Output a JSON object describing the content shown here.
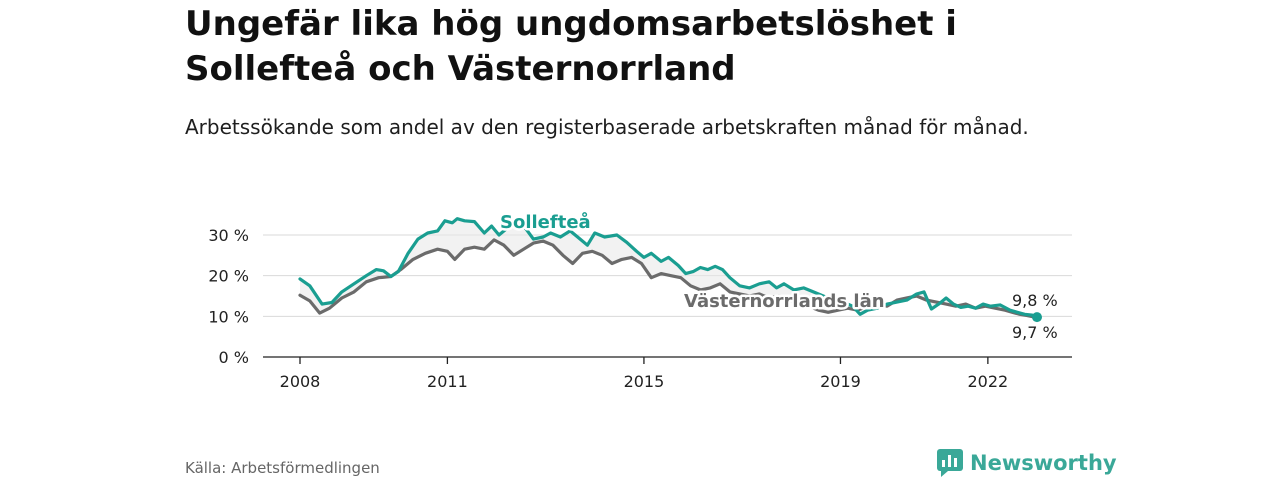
{
  "title": "Ungefär lika hög ungdomsarbetslöshet i Sollefteå och Västernorrland",
  "subtitle": "Arbetssökande som andel av den registerbaserade arbetskraften månad för månad.",
  "source": "Källa: Arbetsförmedlingen",
  "brand": "Newsworthy",
  "colors": {
    "solleftea": "#1a9e91",
    "vasternorrland": "#6b6b6b",
    "band": "#e8e8e8",
    "grid": "#d9d9d9"
  },
  "chart_data": {
    "type": "line",
    "title": "",
    "xlabel": "",
    "ylabel": "",
    "ylim": [
      0,
      30
    ],
    "yticks": [
      {
        "value": 0,
        "label": "0 %"
      },
      {
        "value": 10,
        "label": "10 %"
      },
      {
        "value": 20,
        "label": "20 %"
      },
      {
        "value": 30,
        "label": "30 %"
      }
    ],
    "xlim": [
      2008.0,
      2023.5
    ],
    "xticks": [
      {
        "value": 2008,
        "label": "2008"
      },
      {
        "value": 2011,
        "label": "2011"
      },
      {
        "value": 2015,
        "label": "2015"
      },
      {
        "value": 2019,
        "label": "2019"
      },
      {
        "value": 2022,
        "label": "2022"
      }
    ],
    "grid": true,
    "series": [
      {
        "name": "Sollefteå",
        "color": "#1a9e91",
        "end_label": "9,8 %",
        "points": [
          [
            2008.0,
            19.2
          ],
          [
            2008.2,
            17.5
          ],
          [
            2008.45,
            13.0
          ],
          [
            2008.65,
            13.4
          ],
          [
            2008.85,
            16.0
          ],
          [
            2009.1,
            18.0
          ],
          [
            2009.35,
            20.0
          ],
          [
            2009.55,
            21.5
          ],
          [
            2009.7,
            21.2
          ],
          [
            2009.85,
            19.8
          ],
          [
            2010.0,
            21.0
          ],
          [
            2010.2,
            25.5
          ],
          [
            2010.4,
            29.0
          ],
          [
            2010.6,
            30.5
          ],
          [
            2010.8,
            31.0
          ],
          [
            2010.95,
            33.5
          ],
          [
            2011.1,
            33.0
          ],
          [
            2011.2,
            34.0
          ],
          [
            2011.35,
            33.5
          ],
          [
            2011.55,
            33.3
          ],
          [
            2011.75,
            30.5
          ],
          [
            2011.9,
            32.2
          ],
          [
            2012.05,
            30.0
          ],
          [
            2012.25,
            32.0
          ],
          [
            2012.45,
            32.8
          ],
          [
            2012.6,
            31.5
          ],
          [
            2012.75,
            29.0
          ],
          [
            2012.95,
            29.5
          ],
          [
            2013.1,
            30.5
          ],
          [
            2013.3,
            29.5
          ],
          [
            2013.5,
            31.0
          ],
          [
            2013.65,
            29.5
          ],
          [
            2013.85,
            27.5
          ],
          [
            2014.0,
            30.5
          ],
          [
            2014.2,
            29.5
          ],
          [
            2014.45,
            30.0
          ],
          [
            2014.65,
            28.2
          ],
          [
            2014.85,
            26.0
          ],
          [
            2015.0,
            24.5
          ],
          [
            2015.15,
            25.5
          ],
          [
            2015.35,
            23.5
          ],
          [
            2015.5,
            24.5
          ],
          [
            2015.7,
            22.5
          ],
          [
            2015.85,
            20.5
          ],
          [
            2016.0,
            21.0
          ],
          [
            2016.15,
            22.0
          ],
          [
            2016.3,
            21.5
          ],
          [
            2016.45,
            22.3
          ],
          [
            2016.6,
            21.5
          ],
          [
            2016.75,
            19.5
          ],
          [
            2016.95,
            17.5
          ],
          [
            2017.15,
            17.0
          ],
          [
            2017.35,
            18.0
          ],
          [
            2017.55,
            18.5
          ],
          [
            2017.7,
            17.0
          ],
          [
            2017.85,
            18.0
          ],
          [
            2018.05,
            16.5
          ],
          [
            2018.25,
            17.0
          ],
          [
            2018.45,
            16.0
          ],
          [
            2018.65,
            15.0
          ],
          [
            2018.85,
            14.0
          ],
          [
            2019.05,
            13.5
          ],
          [
            2019.25,
            12.5
          ],
          [
            2019.4,
            10.5
          ],
          [
            2019.55,
            11.5
          ],
          [
            2019.75,
            12.0
          ],
          [
            2019.95,
            13.0
          ],
          [
            2020.15,
            13.5
          ],
          [
            2020.35,
            14.0
          ],
          [
            2020.55,
            15.5
          ],
          [
            2020.7,
            16.0
          ],
          [
            2020.85,
            11.8
          ],
          [
            2021.0,
            13.0
          ],
          [
            2021.15,
            14.5
          ],
          [
            2021.3,
            13.0
          ],
          [
            2021.45,
            12.2
          ],
          [
            2021.6,
            12.5
          ],
          [
            2021.75,
            12.0
          ],
          [
            2021.9,
            13.0
          ],
          [
            2022.05,
            12.5
          ],
          [
            2022.25,
            12.8
          ],
          [
            2022.45,
            11.5
          ],
          [
            2022.6,
            11.0
          ],
          [
            2022.75,
            10.5
          ],
          [
            2022.9,
            10.3
          ],
          [
            2023.0,
            9.8
          ]
        ]
      },
      {
        "name": "Västernorrlands län",
        "color": "#6b6b6b",
        "end_label": "9,7 %",
        "points": [
          [
            2008.0,
            15.2
          ],
          [
            2008.2,
            13.8
          ],
          [
            2008.4,
            10.8
          ],
          [
            2008.6,
            12.0
          ],
          [
            2008.85,
            14.5
          ],
          [
            2009.1,
            16.0
          ],
          [
            2009.35,
            18.5
          ],
          [
            2009.6,
            19.5
          ],
          [
            2009.85,
            19.8
          ],
          [
            2010.05,
            21.5
          ],
          [
            2010.3,
            24.0
          ],
          [
            2010.55,
            25.5
          ],
          [
            2010.8,
            26.5
          ],
          [
            2011.0,
            26.0
          ],
          [
            2011.15,
            24.0
          ],
          [
            2011.35,
            26.5
          ],
          [
            2011.55,
            27.0
          ],
          [
            2011.75,
            26.5
          ],
          [
            2011.95,
            28.8
          ],
          [
            2012.15,
            27.5
          ],
          [
            2012.35,
            25.0
          ],
          [
            2012.55,
            26.5
          ],
          [
            2012.75,
            28.0
          ],
          [
            2012.95,
            28.5
          ],
          [
            2013.15,
            27.5
          ],
          [
            2013.35,
            25.0
          ],
          [
            2013.55,
            23.0
          ],
          [
            2013.75,
            25.5
          ],
          [
            2013.95,
            26.0
          ],
          [
            2014.15,
            25.0
          ],
          [
            2014.35,
            23.0
          ],
          [
            2014.55,
            24.0
          ],
          [
            2014.75,
            24.5
          ],
          [
            2014.95,
            23.0
          ],
          [
            2015.15,
            19.5
          ],
          [
            2015.35,
            20.5
          ],
          [
            2015.55,
            20.0
          ],
          [
            2015.75,
            19.5
          ],
          [
            2015.95,
            17.5
          ],
          [
            2016.15,
            16.5
          ],
          [
            2016.35,
            17.0
          ],
          [
            2016.55,
            18.0
          ],
          [
            2016.75,
            16.0
          ],
          [
            2016.95,
            15.5
          ],
          [
            2017.15,
            15.0
          ],
          [
            2017.35,
            15.5
          ],
          [
            2017.55,
            14.5
          ],
          [
            2017.75,
            15.0
          ],
          [
            2017.95,
            14.0
          ],
          [
            2018.15,
            13.5
          ],
          [
            2018.35,
            12.5
          ],
          [
            2018.55,
            11.5
          ],
          [
            2018.75,
            11.0
          ],
          [
            2018.95,
            11.5
          ],
          [
            2019.15,
            12.0
          ],
          [
            2019.35,
            11.5
          ],
          [
            2019.55,
            12.5
          ],
          [
            2019.75,
            13.0
          ],
          [
            2019.95,
            12.5
          ],
          [
            2020.15,
            14.0
          ],
          [
            2020.35,
            14.5
          ],
          [
            2020.55,
            15.0
          ],
          [
            2020.75,
            14.0
          ],
          [
            2020.95,
            13.5
          ],
          [
            2021.15,
            13.0
          ],
          [
            2021.35,
            12.5
          ],
          [
            2021.55,
            13.0
          ],
          [
            2021.75,
            12.0
          ],
          [
            2021.95,
            12.5
          ],
          [
            2022.15,
            12.0
          ],
          [
            2022.35,
            11.5
          ],
          [
            2022.5,
            11.0
          ],
          [
            2022.65,
            10.5
          ],
          [
            2022.8,
            10.2
          ],
          [
            2023.0,
            9.7
          ]
        ]
      }
    ]
  }
}
